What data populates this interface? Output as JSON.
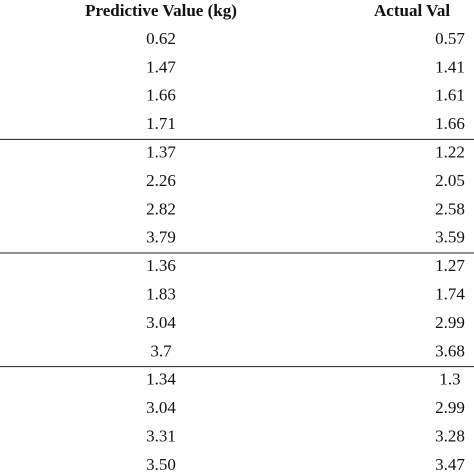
{
  "table": {
    "header": [
      "Predictive Value (kg)",
      "Actual Val"
    ],
    "rows": [
      [
        "0.62",
        "0.57"
      ],
      [
        "1.47",
        "1.41"
      ],
      [
        "1.66",
        "1.61"
      ],
      [
        "1.71",
        "1.66"
      ],
      [
        "1.37",
        "1.22"
      ],
      [
        "2.26",
        "2.05"
      ],
      [
        "2.82",
        "2.58"
      ],
      [
        "3.79",
        "3.59"
      ],
      [
        "1.36",
        "1.27"
      ],
      [
        "1.83",
        "1.74"
      ],
      [
        "3.04",
        "2.99"
      ],
      [
        "3.7",
        "3.68"
      ],
      [
        "1.34",
        "1.3"
      ],
      [
        "3.04",
        "2.99"
      ],
      [
        "3.31",
        "3.28"
      ],
      [
        "3.50",
        "3.47"
      ]
    ]
  }
}
